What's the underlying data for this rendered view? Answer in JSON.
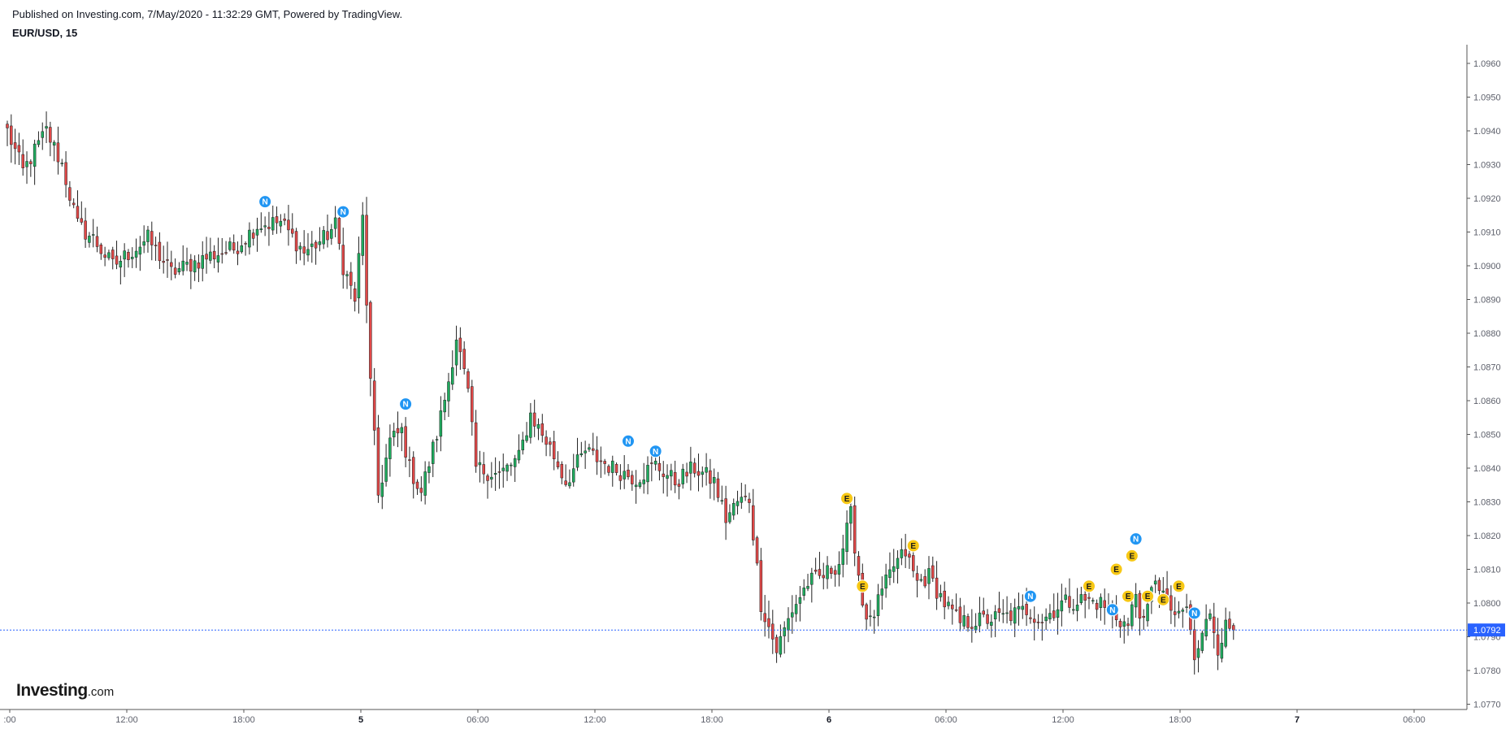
{
  "header": {
    "published": "Published on Investing.com, 7/May/2020 - 11:32:29 GMT, Powered by TradingView.",
    "symbol": "EUR/USD, 15"
  },
  "logo": {
    "main": "Investing",
    "suffix": ".com"
  },
  "colors": {
    "up": "#26a69a",
    "up_fill": "#1fab5e",
    "down": "#ef5350",
    "down_fill": "#e04848",
    "wick": "#222222",
    "news_marker": "#2196f3",
    "economic_marker": "#f7c815",
    "price_line": "#2962ff",
    "axis": "#555555"
  },
  "chart_data": {
    "type": "candlestick",
    "timeframe_minutes": 15,
    "ylim": [
      1.077,
      1.0965
    ],
    "price_ticks": [
      "1.0960",
      "1.0950",
      "1.0940",
      "1.0930",
      "1.0920",
      "1.0910",
      "1.0900",
      "1.0890",
      "1.0880",
      "1.0870",
      "1.0860",
      "1.0850",
      "1.0840",
      "1.0830",
      "1.0820",
      "1.0810",
      "1.0800",
      "1.0790",
      "1.0780",
      "1.0770"
    ],
    "x_ticks": [
      {
        "label": ":00",
        "bold": false
      },
      {
        "label": "12:00",
        "bold": false
      },
      {
        "label": "18:00",
        "bold": false
      },
      {
        "label": "5",
        "bold": true
      },
      {
        "label": "06:00",
        "bold": false
      },
      {
        "label": "12:00",
        "bold": false
      },
      {
        "label": "18:00",
        "bold": false
      },
      {
        "label": "6",
        "bold": true
      },
      {
        "label": "06:00",
        "bold": false
      },
      {
        "label": "12:00",
        "bold": false
      },
      {
        "label": "18:00",
        "bold": false
      },
      {
        "label": "7",
        "bold": true
      },
      {
        "label": "06:00",
        "bold": false
      }
    ],
    "current_price": "1.0792",
    "keypoints": [
      {
        "bar": 0,
        "price": 1.094
      },
      {
        "bar": 4,
        "price": 1.0928
      },
      {
        "bar": 10,
        "price": 1.094
      },
      {
        "bar": 14,
        "price": 1.093
      },
      {
        "bar": 18,
        "price": 1.0912
      },
      {
        "bar": 22,
        "price": 1.0908
      },
      {
        "bar": 27,
        "price": 1.09
      },
      {
        "bar": 36,
        "price": 1.0908
      },
      {
        "bar": 42,
        "price": 1.0898
      },
      {
        "bar": 52,
        "price": 1.0903
      },
      {
        "bar": 58,
        "price": 1.0905
      },
      {
        "bar": 64,
        "price": 1.0912
      },
      {
        "bar": 70,
        "price": 1.0913
      },
      {
        "bar": 76,
        "price": 1.0904
      },
      {
        "bar": 81,
        "price": 1.0908
      },
      {
        "bar": 84,
        "price": 1.0912
      },
      {
        "bar": 86,
        "price": 1.09
      },
      {
        "bar": 89,
        "price": 1.089
      },
      {
        "bar": 91,
        "price": 1.0914
      },
      {
        "bar": 93,
        "price": 1.0865
      },
      {
        "bar": 95,
        "price": 1.0832
      },
      {
        "bar": 98,
        "price": 1.0848
      },
      {
        "bar": 101,
        "price": 1.0851
      },
      {
        "bar": 103,
        "price": 1.084
      },
      {
        "bar": 106,
        "price": 1.0833
      },
      {
        "bar": 110,
        "price": 1.085
      },
      {
        "bar": 113,
        "price": 1.0866
      },
      {
        "bar": 115,
        "price": 1.0879
      },
      {
        "bar": 118,
        "price": 1.0862
      },
      {
        "bar": 120,
        "price": 1.084
      },
      {
        "bar": 126,
        "price": 1.0838
      },
      {
        "bar": 131,
        "price": 1.0843
      },
      {
        "bar": 134,
        "price": 1.0856
      },
      {
        "bar": 139,
        "price": 1.0846
      },
      {
        "bar": 143,
        "price": 1.0836
      },
      {
        "bar": 148,
        "price": 1.0845
      },
      {
        "bar": 155,
        "price": 1.084
      },
      {
        "bar": 161,
        "price": 1.0837
      },
      {
        "bar": 166,
        "price": 1.0841
      },
      {
        "bar": 171,
        "price": 1.0836
      },
      {
        "bar": 176,
        "price": 1.084
      },
      {
        "bar": 181,
        "price": 1.0836
      },
      {
        "bar": 184,
        "price": 1.0825
      },
      {
        "bar": 187,
        "price": 1.083
      },
      {
        "bar": 190,
        "price": 1.0831
      },
      {
        "bar": 193,
        "price": 1.08
      },
      {
        "bar": 197,
        "price": 1.0786
      },
      {
        "bar": 201,
        "price": 1.0798
      },
      {
        "bar": 205,
        "price": 1.0806
      },
      {
        "bar": 209,
        "price": 1.0808
      },
      {
        "bar": 213,
        "price": 1.0812
      },
      {
        "bar": 216,
        "price": 1.0826
      },
      {
        "bar": 219,
        "price": 1.08
      },
      {
        "bar": 221,
        "price": 1.0794
      },
      {
        "bar": 224,
        "price": 1.0803
      },
      {
        "bar": 227,
        "price": 1.0811
      },
      {
        "bar": 230,
        "price": 1.0815
      },
      {
        "bar": 233,
        "price": 1.0806
      },
      {
        "bar": 236,
        "price": 1.0808
      },
      {
        "bar": 240,
        "price": 1.08
      },
      {
        "bar": 244,
        "price": 1.0794
      },
      {
        "bar": 250,
        "price": 1.0795
      },
      {
        "bar": 256,
        "price": 1.0796
      },
      {
        "bar": 261,
        "price": 1.0798
      },
      {
        "bar": 265,
        "price": 1.0795
      },
      {
        "bar": 270,
        "price": 1.08
      },
      {
        "bar": 275,
        "price": 1.0801
      },
      {
        "bar": 280,
        "price": 1.08
      },
      {
        "bar": 284,
        "price": 1.0796
      },
      {
        "bar": 287,
        "price": 1.0793
      },
      {
        "bar": 289,
        "price": 1.0803
      },
      {
        "bar": 291,
        "price": 1.0793
      },
      {
        "bar": 294,
        "price": 1.0808
      },
      {
        "bar": 297,
        "price": 1.08
      },
      {
        "bar": 300,
        "price": 1.0795
      },
      {
        "bar": 302,
        "price": 1.0799
      },
      {
        "bar": 304,
        "price": 1.0783
      },
      {
        "bar": 306,
        "price": 1.079
      },
      {
        "bar": 308,
        "price": 1.0798
      },
      {
        "bar": 310,
        "price": 1.0787
      },
      {
        "bar": 312,
        "price": 1.0793
      },
      {
        "bar": 314,
        "price": 1.0792
      }
    ],
    "events": [
      {
        "type": "N",
        "bar": 66,
        "price": 1.0919
      },
      {
        "type": "N",
        "bar": 86,
        "price": 1.0916
      },
      {
        "type": "N",
        "bar": 102,
        "price": 1.0859
      },
      {
        "type": "N",
        "bar": 159,
        "price": 1.0848
      },
      {
        "type": "N",
        "bar": 166,
        "price": 1.0845
      },
      {
        "type": "E",
        "bar": 215,
        "price": 1.0831
      },
      {
        "type": "E",
        "bar": 219,
        "price": 1.0805
      },
      {
        "type": "E",
        "bar": 232,
        "price": 1.0817
      },
      {
        "type": "N",
        "bar": 262,
        "price": 1.0802
      },
      {
        "type": "E",
        "bar": 277,
        "price": 1.0805
      },
      {
        "type": "N",
        "bar": 283,
        "price": 1.0798
      },
      {
        "type": "E",
        "bar": 284,
        "price": 1.081
      },
      {
        "type": "E",
        "bar": 287,
        "price": 1.0802
      },
      {
        "type": "E",
        "bar": 288,
        "price": 1.0814
      },
      {
        "type": "N",
        "bar": 289,
        "price": 1.0819
      },
      {
        "type": "E",
        "bar": 292,
        "price": 1.0802
      },
      {
        "type": "E",
        "bar": 296,
        "price": 1.0801
      },
      {
        "type": "E",
        "bar": 300,
        "price": 1.0805
      },
      {
        "type": "N",
        "bar": 304,
        "price": 1.0797
      }
    ]
  }
}
